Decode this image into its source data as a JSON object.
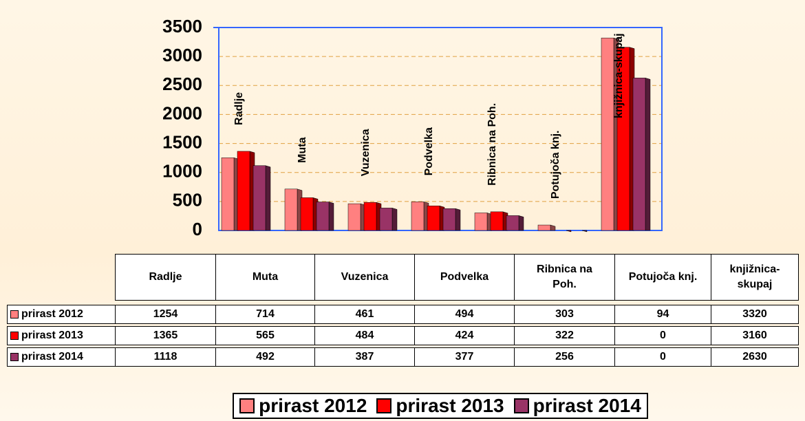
{
  "chart_data": {
    "type": "bar",
    "categories": [
      "Radlje",
      "Muta",
      "Vuzenica",
      "Podvelka",
      "Ribnica na Poh.",
      "Potujoča knj.",
      "knjižnica-skupaj"
    ],
    "series": [
      {
        "name": "prirast 2012",
        "color": "#ff8080",
        "values": [
          1254,
          714,
          461,
          494,
          303,
          94,
          3320
        ]
      },
      {
        "name": "prirast 2013",
        "color": "#ff0000",
        "values": [
          1365,
          565,
          484,
          424,
          322,
          0,
          3160
        ]
      },
      {
        "name": "prirast 2014",
        "color": "#993366",
        "values": [
          1118,
          492,
          387,
          377,
          256,
          0,
          2630
        ]
      }
    ],
    "ylim": [
      0,
      3500
    ],
    "yticks": [
      0,
      500,
      1000,
      1500,
      2000,
      2500,
      3000,
      3500
    ],
    "grid": true
  }
}
